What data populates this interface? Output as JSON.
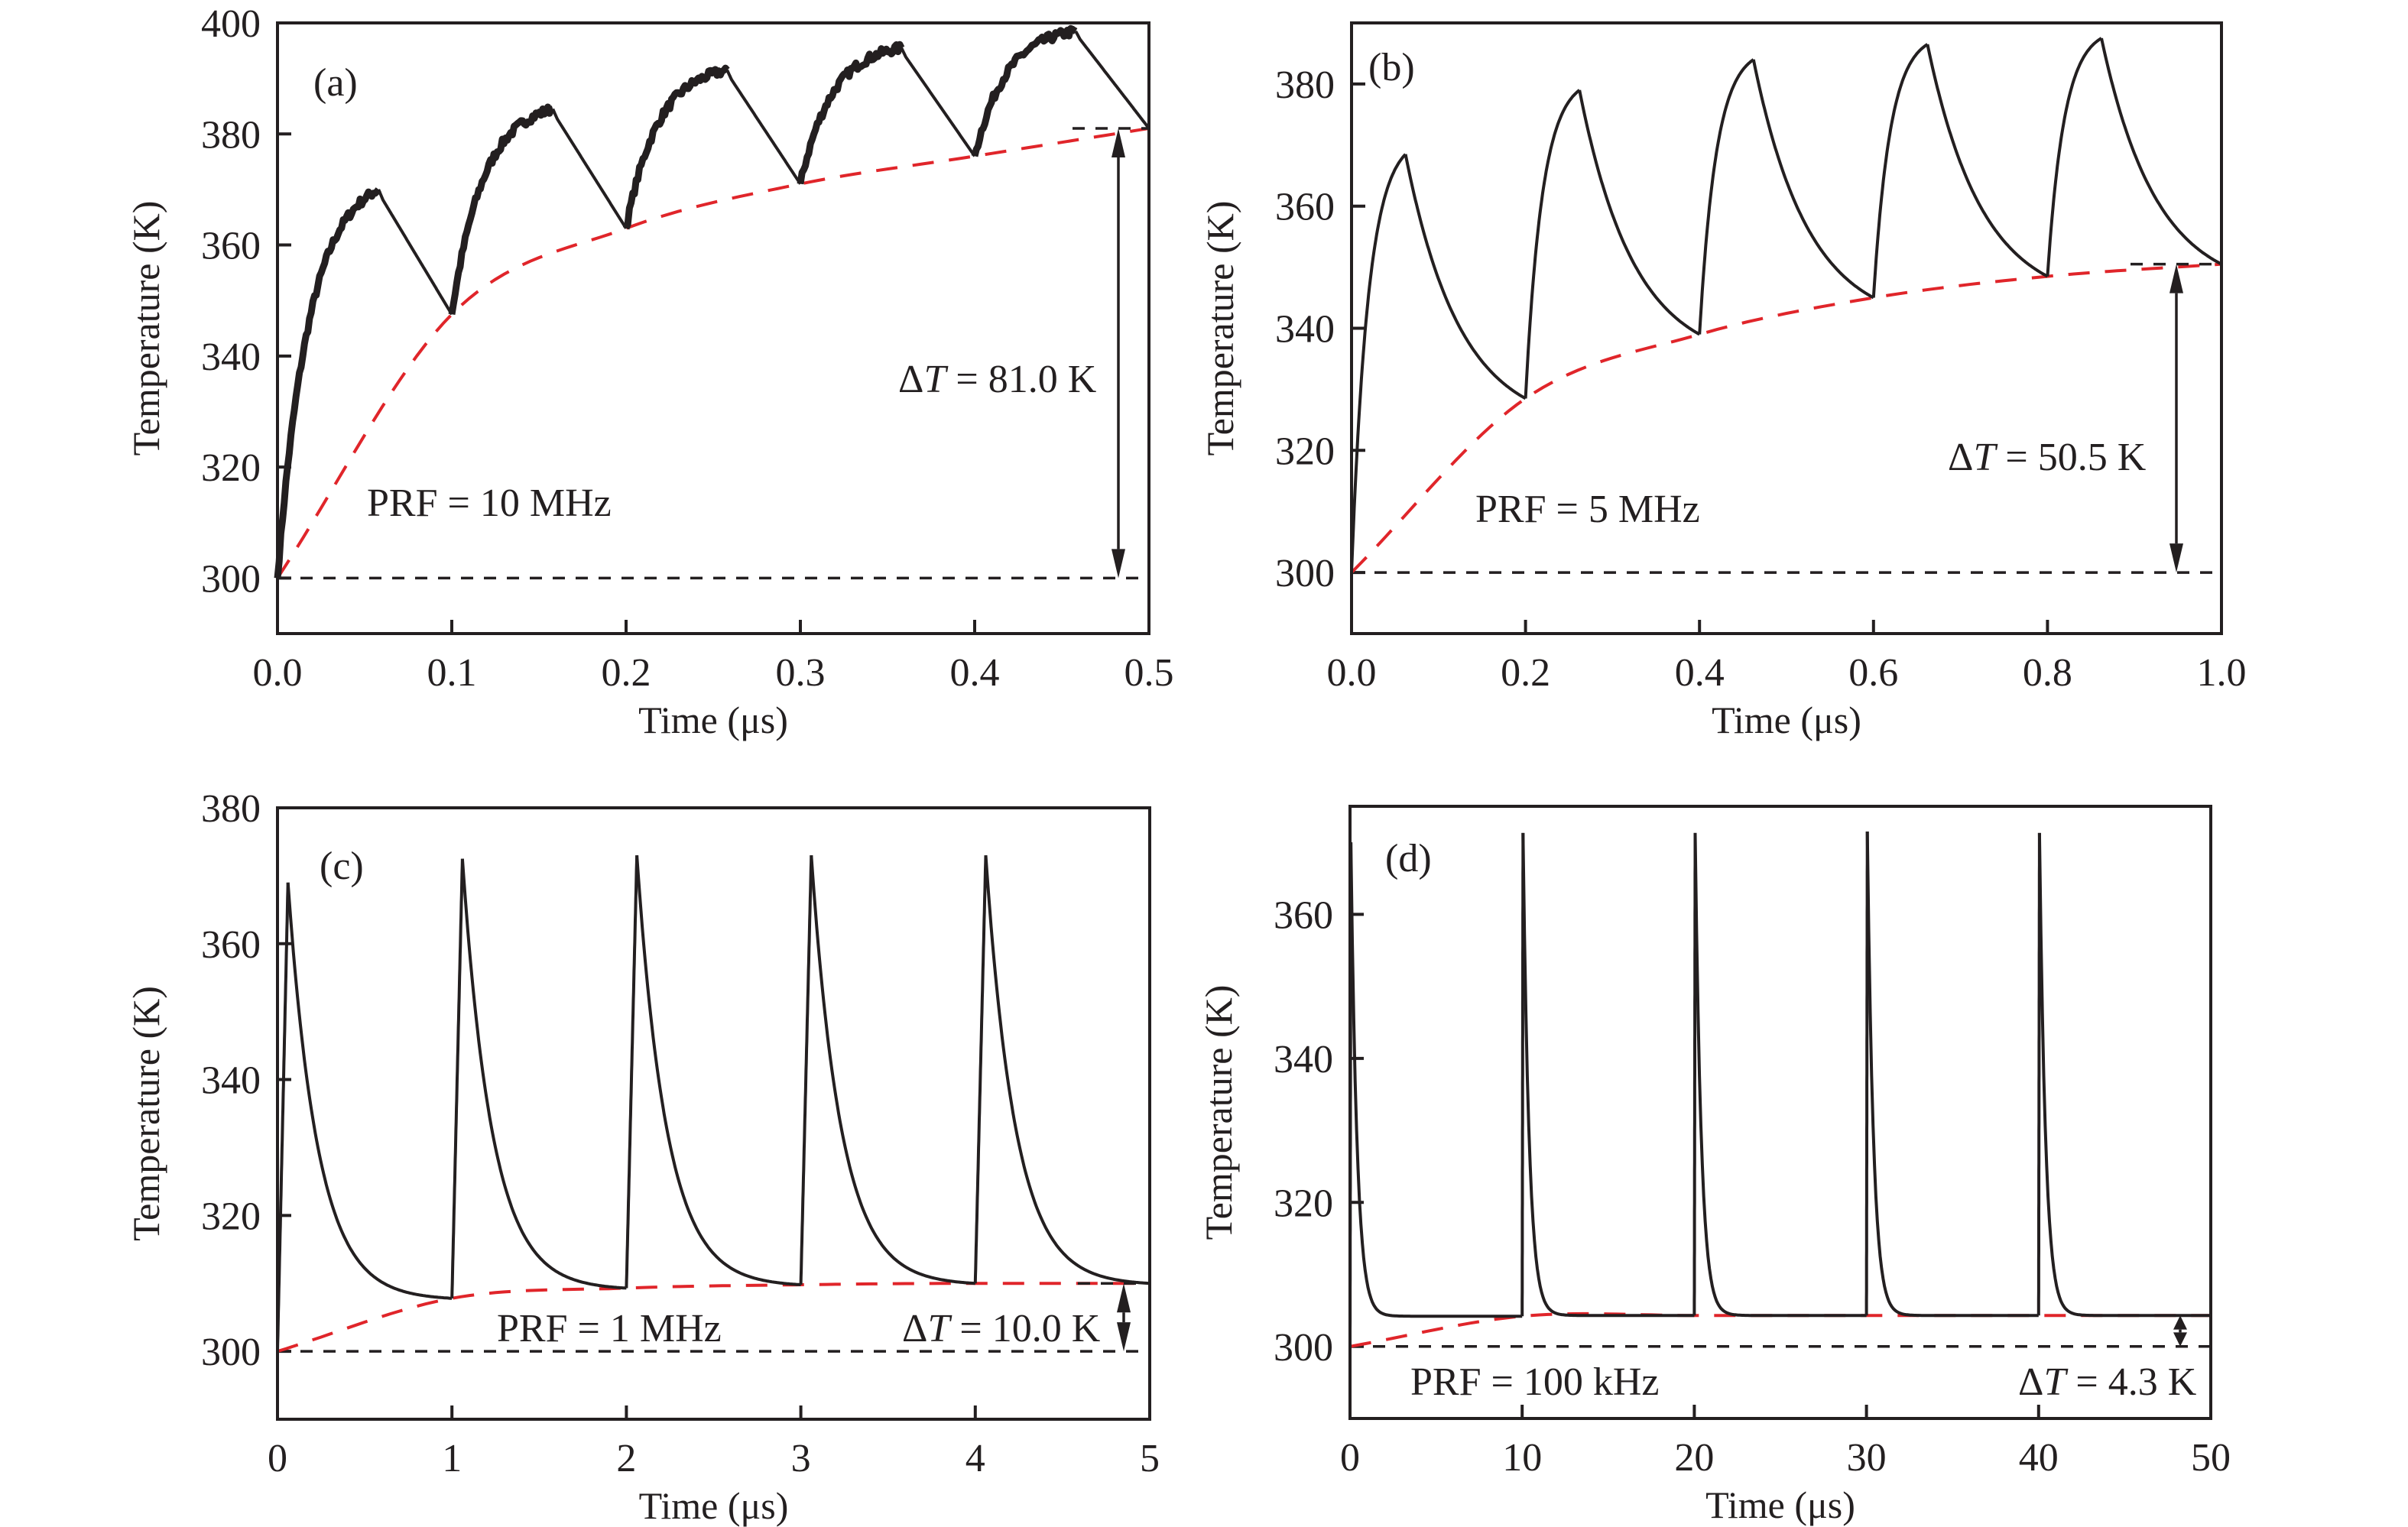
{
  "figure": {
    "description": "Temperature evolution under pulsed laser heating at four pulse repetition frequencies"
  },
  "chart_data": [
    {
      "id": "a",
      "type": "line",
      "panel_label": "(a)",
      "xlabel": "Time (μs)",
      "ylabel": "Temperature (K)",
      "xlim": [
        0,
        0.5
      ],
      "ylim": [
        290,
        400
      ],
      "xticks": [
        0.0,
        0.1,
        0.2,
        0.3,
        0.4,
        0.5
      ],
      "xtick_labels": [
        "0.0",
        "0.1",
        "0.2",
        "0.3",
        "0.4",
        "0.5"
      ],
      "yticks": [
        300,
        320,
        340,
        360,
        380,
        400
      ],
      "ytick_labels": [
        "300",
        "320",
        "340",
        "360",
        "380",
        "400"
      ],
      "grid": false,
      "prf_label": "PRF = 10 MHz",
      "delta_label": {
        "prefix": "Δ",
        "var": "T",
        "suffix": " = 81.0 K"
      },
      "delta_T": 81.0,
      "baseline_T": 300,
      "final_T": 381.0,
      "period": 0.1,
      "heating_duration": 0.058,
      "noisy_heating": true,
      "decay_shape": "linear",
      "pulses": [
        {
          "start_T": 300.0,
          "peak_T": 370.0,
          "end_T": 347.5
        },
        {
          "start_T": 347.5,
          "peak_T": 384.5,
          "end_T": 363.0
        },
        {
          "start_T": 363.0,
          "peak_T": 391.5,
          "end_T": 371.0
        },
        {
          "start_T": 371.0,
          "peak_T": 395.5,
          "end_T": 376.0
        },
        {
          "start_T": 376.0,
          "peak_T": 398.5,
          "end_T": 381.0
        }
      ],
      "envelope": {
        "x": [
          0,
          0.1,
          0.2,
          0.3,
          0.4,
          0.5
        ],
        "y": [
          300,
          347.5,
          363.0,
          371.0,
          376.0,
          381.0
        ],
        "color": "#e0252a"
      }
    },
    {
      "id": "b",
      "type": "line",
      "panel_label": "(b)",
      "xlabel": "Time (μs)",
      "ylabel": "Temperature (K)",
      "xlim": [
        0,
        1.0
      ],
      "ylim": [
        290,
        390
      ],
      "xticks": [
        0.0,
        0.2,
        0.4,
        0.6,
        0.8,
        1.0
      ],
      "xtick_labels": [
        "0.0",
        "0.2",
        "0.4",
        "0.6",
        "0.8",
        "1.0"
      ],
      "yticks": [
        300,
        320,
        340,
        360,
        380
      ],
      "ytick_labels": [
        "300",
        "320",
        "340",
        "360",
        "380"
      ],
      "grid": false,
      "prf_label": "PRF = 5 MHz",
      "delta_label": {
        "prefix": "Δ",
        "var": "T",
        "suffix": " = 50.5 K"
      },
      "delta_T": 50.5,
      "baseline_T": 300,
      "final_T": 350.5,
      "period": 0.2,
      "heating_duration": 0.062,
      "noisy_heating": false,
      "decay_shape": "exp",
      "pulses": [
        {
          "start_T": 300.0,
          "peak_T": 368.5,
          "end_T": 328.5
        },
        {
          "start_T": 328.5,
          "peak_T": 379.0,
          "end_T": 339.0
        },
        {
          "start_T": 339.0,
          "peak_T": 384.0,
          "end_T": 345.0
        },
        {
          "start_T": 345.0,
          "peak_T": 386.5,
          "end_T": 348.5
        },
        {
          "start_T": 348.5,
          "peak_T": 387.5,
          "end_T": 350.5
        }
      ],
      "envelope": {
        "x": [
          0,
          0.2,
          0.4,
          0.6,
          0.8,
          1.0
        ],
        "y": [
          300,
          328.5,
          339.0,
          345.0,
          348.5,
          350.5
        ],
        "color": "#e0252a"
      }
    },
    {
      "id": "c",
      "type": "line",
      "panel_label": "(c)",
      "xlabel": "Time (μs)",
      "ylabel": "Temperature (K)",
      "xlim": [
        0,
        5
      ],
      "ylim": [
        290,
        380
      ],
      "xticks": [
        0,
        1,
        2,
        3,
        4,
        5
      ],
      "xtick_labels": [
        "0",
        "1",
        "2",
        "3",
        "4",
        "5"
      ],
      "yticks": [
        300,
        320,
        340,
        360,
        380
      ],
      "ytick_labels": [
        "300",
        "320",
        "340",
        "360",
        "380"
      ],
      "grid": false,
      "prf_label": "PRF = 1 MHz",
      "delta_label": {
        "prefix": "Δ",
        "var": "T",
        "suffix": " = 10.0 K"
      },
      "delta_T": 10.0,
      "baseline_T": 300,
      "final_T": 310.0,
      "period": 1.0,
      "heating_duration": 0.06,
      "noisy_heating": false,
      "decay_shape": "exp",
      "pulses": [
        {
          "start_T": 300.0,
          "peak_T": 369.0,
          "end_T": 307.8
        },
        {
          "start_T": 307.8,
          "peak_T": 372.5,
          "end_T": 309.3
        },
        {
          "start_T": 309.3,
          "peak_T": 373.0,
          "end_T": 309.8
        },
        {
          "start_T": 309.8,
          "peak_T": 373.0,
          "end_T": 310.0
        },
        {
          "start_T": 310.0,
          "peak_T": 373.0,
          "end_T": 310.0
        }
      ],
      "envelope": {
        "x": [
          0,
          1,
          2,
          3,
          4,
          5
        ],
        "y": [
          300,
          307.8,
          309.3,
          309.8,
          310.0,
          310.0
        ],
        "color": "#e0252a"
      }
    },
    {
      "id": "d",
      "type": "line",
      "panel_label": "(d)",
      "xlabel": "Time (μs)",
      "ylabel": "Temperature (K)",
      "xlim": [
        0,
        50
      ],
      "ylim": [
        290,
        375
      ],
      "xticks": [
        0,
        10,
        20,
        30,
        40,
        50
      ],
      "xtick_labels": [
        "0",
        "10",
        "20",
        "30",
        "40",
        "50"
      ],
      "yticks": [
        300,
        320,
        340,
        360
      ],
      "ytick_labels": [
        "300",
        "320",
        "340",
        "360"
      ],
      "grid": false,
      "prf_label": "PRF = 100 kHz",
      "delta_label": {
        "prefix": "Δ",
        "var": "T",
        "suffix": " = 4.3 K"
      },
      "delta_T": 4.3,
      "baseline_T": 300,
      "final_T": 304.3,
      "period": 10,
      "heating_duration": 0.06,
      "noisy_heating": false,
      "decay_shape": "fast-exp",
      "pulses": [
        {
          "start_T": 300.0,
          "peak_T": 370.0,
          "end_T": 304.2
        },
        {
          "start_T": 304.2,
          "peak_T": 371.3,
          "end_T": 304.3
        },
        {
          "start_T": 304.3,
          "peak_T": 371.3,
          "end_T": 304.3
        },
        {
          "start_T": 304.3,
          "peak_T": 371.5,
          "end_T": 304.3
        },
        {
          "start_T": 304.3,
          "peak_T": 371.3,
          "end_T": 304.3
        }
      ],
      "envelope": {
        "x": [
          0,
          10,
          20,
          30,
          40,
          50
        ],
        "y": [
          300,
          304.2,
          304.3,
          304.3,
          304.3,
          304.3
        ],
        "color": "#e0252a"
      }
    }
  ]
}
